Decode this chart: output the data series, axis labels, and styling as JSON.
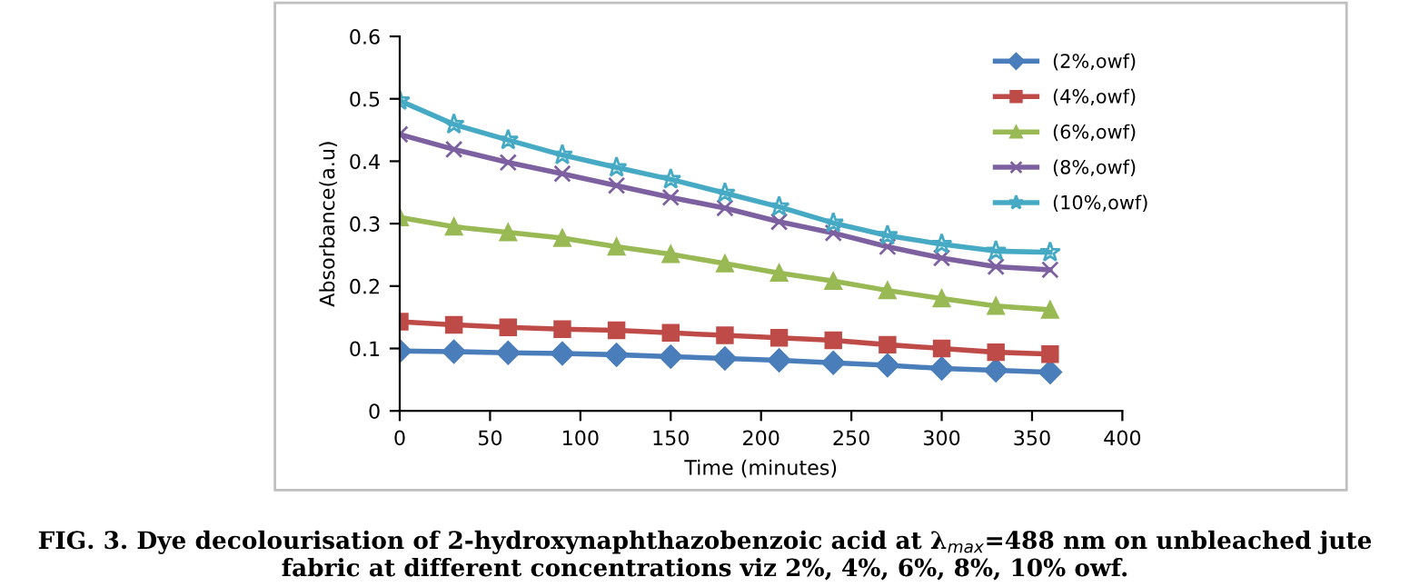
{
  "chart_data": {
    "type": "line",
    "xlabel": "Time (minutes)",
    "ylabel": "Absorbance(a.u)",
    "x": [
      0,
      30,
      60,
      90,
      120,
      150,
      180,
      210,
      240,
      270,
      300,
      330,
      360
    ],
    "xlim": [
      0,
      400
    ],
    "xticks": [
      0,
      50,
      100,
      150,
      200,
      250,
      300,
      350,
      400
    ],
    "ylim": [
      0,
      0.6
    ],
    "yticks": [
      0,
      0.1,
      0.2,
      0.3,
      0.4,
      0.5,
      0.6
    ],
    "grid": false,
    "legend": "top right",
    "series": [
      {
        "name": "(2%,owf)",
        "color": "#4a7ebb",
        "marker": "diamond",
        "values": [
          0.096,
          0.095,
          0.093,
          0.092,
          0.09,
          0.087,
          0.084,
          0.081,
          0.077,
          0.073,
          0.068,
          0.065,
          0.062
        ]
      },
      {
        "name": "(4%,owf)",
        "color": "#be4b48",
        "marker": "square",
        "values": [
          0.143,
          0.138,
          0.134,
          0.131,
          0.129,
          0.125,
          0.121,
          0.117,
          0.113,
          0.106,
          0.1,
          0.094,
          0.091
        ]
      },
      {
        "name": "(6%,owf)",
        "color": "#98b954",
        "marker": "triangle",
        "values": [
          0.31,
          0.295,
          0.286,
          0.277,
          0.263,
          0.251,
          0.236,
          0.221,
          0.208,
          0.193,
          0.18,
          0.168,
          0.162
        ]
      },
      {
        "name": "(8%,owf)",
        "color": "#7d60a0",
        "marker": "cross",
        "values": [
          0.443,
          0.419,
          0.398,
          0.38,
          0.361,
          0.342,
          0.325,
          0.303,
          0.285,
          0.263,
          0.245,
          0.231,
          0.226
        ]
      },
      {
        "name": "(10%,owf)",
        "color": "#46aac5",
        "marker": "star",
        "values": [
          0.497,
          0.459,
          0.434,
          0.41,
          0.39,
          0.371,
          0.349,
          0.327,
          0.301,
          0.281,
          0.267,
          0.256,
          0.254
        ]
      }
    ],
    "annotations": [
      "FIG. 3. Dye decolourisation of 2-hydroxynaphthazobenzoic acid at λ$_{max}$=488 nm on unbleached jute fabric at different concentrations viz 2%, 4%, 6%, 8%, 10% owf."
    ]
  }
}
